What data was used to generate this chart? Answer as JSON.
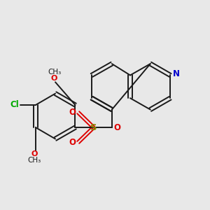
{
  "bg_color": "#e8e8e8",
  "bond_color": "#1a1a1a",
  "N_color": "#0000cc",
  "O_color": "#dd0000",
  "S_color": "#888800",
  "Cl_color": "#00aa00",
  "figsize": [
    3.0,
    3.0
  ],
  "dpi": 100,
  "xlim": [
    0,
    10
  ],
  "ylim": [
    0,
    10
  ]
}
